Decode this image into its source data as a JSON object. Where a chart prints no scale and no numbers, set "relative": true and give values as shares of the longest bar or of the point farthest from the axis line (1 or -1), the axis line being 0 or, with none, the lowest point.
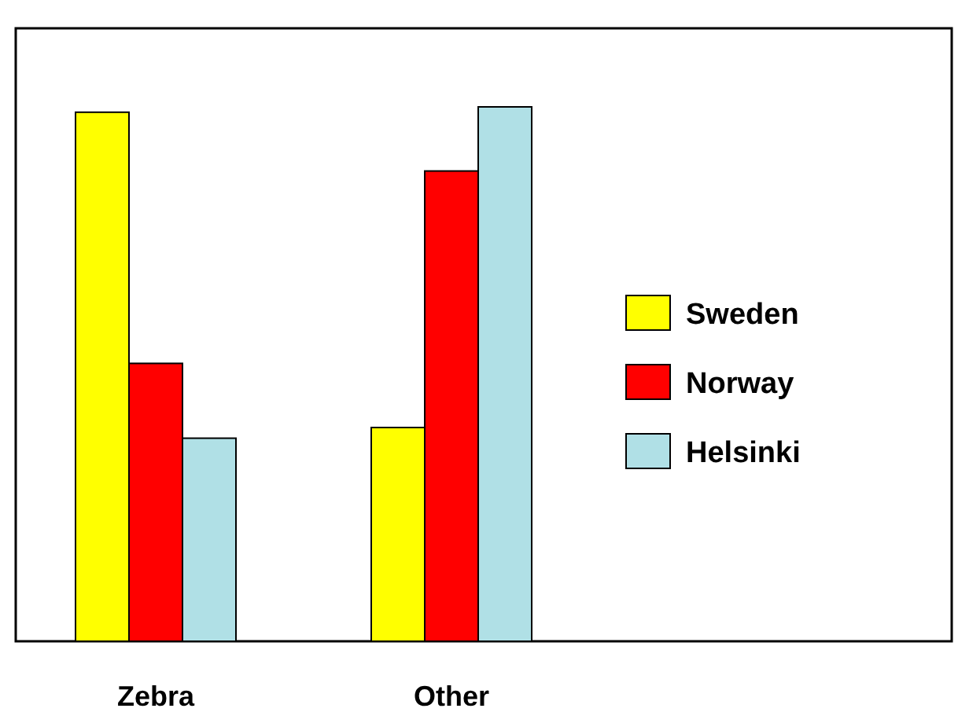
{
  "chart_data": {
    "type": "bar",
    "relative": true,
    "categories": [
      "Zebra",
      "Other"
    ],
    "series": [
      {
        "name": "Sweden",
        "color": "#ffff00",
        "values": [
          0.99,
          0.4
        ]
      },
      {
        "name": "Norway",
        "color": "#ff0000",
        "values": [
          0.52,
          0.88
        ]
      },
      {
        "name": "Helsinki",
        "color": "#b0e0e6",
        "values": [
          0.38,
          1
        ]
      }
    ],
    "legend": "right",
    "grid": false
  }
}
